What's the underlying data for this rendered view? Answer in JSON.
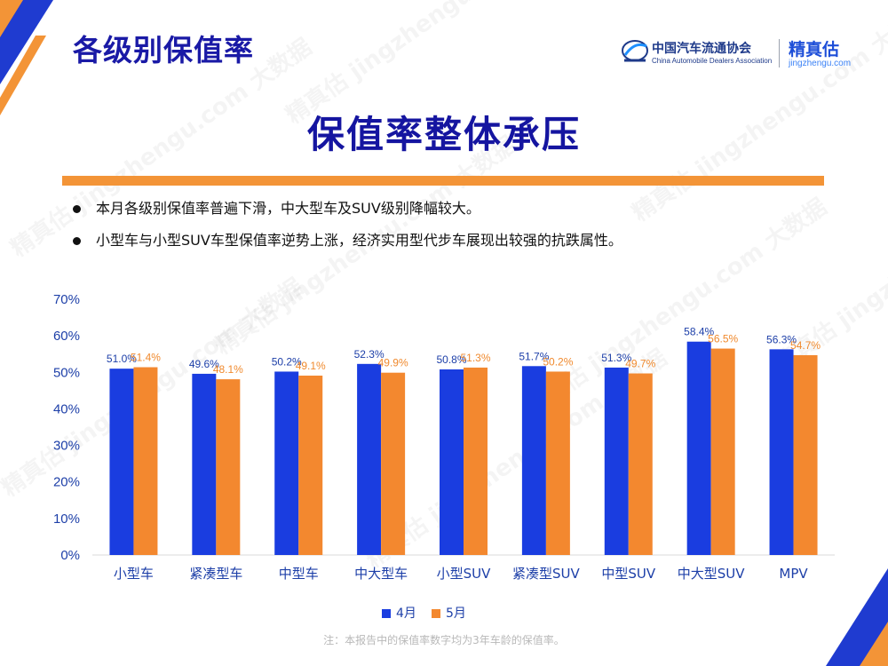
{
  "header": {
    "title": "各级别保值率",
    "cada_name": "中国汽车流通协会",
    "cada_name_en": "China Automobile Dealers Association",
    "brand_name": "精真估",
    "brand_url": "jingzhengu.com"
  },
  "main_title": "保值率整体承压",
  "bullets": [
    "本月各级别保值率普遍下滑，中大型车及SUV级别降幅较大。",
    "小型车与小型SUV车型保值率逆势上涨，经济实用型代步车展现出较强的抗跌属性。"
  ],
  "watermark_text": "精真估 jingzhengu.com 大数据",
  "note": "注：本报告中的保值率数字均为3年车龄的保值率。",
  "colors": {
    "april": "#1a3de0",
    "may": "#f3882f",
    "rule": "#f39437",
    "title": "#1a1aa6"
  },
  "chart_data": {
    "type": "bar",
    "categories": [
      "小型车",
      "紧凑型车",
      "中型车",
      "中大型车",
      "小型SUV",
      "紧凑型SUV",
      "中型SUV",
      "中大型SUV",
      "MPV"
    ],
    "series": [
      {
        "name": "4月",
        "values": [
          51.0,
          49.6,
          50.2,
          52.3,
          50.8,
          51.7,
          51.3,
          58.4,
          56.3
        ],
        "labels": [
          "51.0%",
          "49.6%",
          "50.2%",
          "52.3%",
          "50.8%",
          "51.7%",
          "51.3%",
          "58.4%",
          "56.3%"
        ]
      },
      {
        "name": "5月",
        "values": [
          51.4,
          48.1,
          49.1,
          49.9,
          51.3,
          50.2,
          49.7,
          56.5,
          54.7
        ],
        "labels": [
          "51.4%",
          "48.1%",
          "49.1%",
          "49.9%",
          "51.3%",
          "50.2%",
          "49.7%",
          "56.5%",
          "54.7%"
        ]
      }
    ],
    "yticks": [
      "0%",
      "10%",
      "20%",
      "30%",
      "40%",
      "50%",
      "60%",
      "70%"
    ],
    "ylim": [
      0,
      70
    ],
    "grid": false,
    "legend_position": "bottom"
  }
}
